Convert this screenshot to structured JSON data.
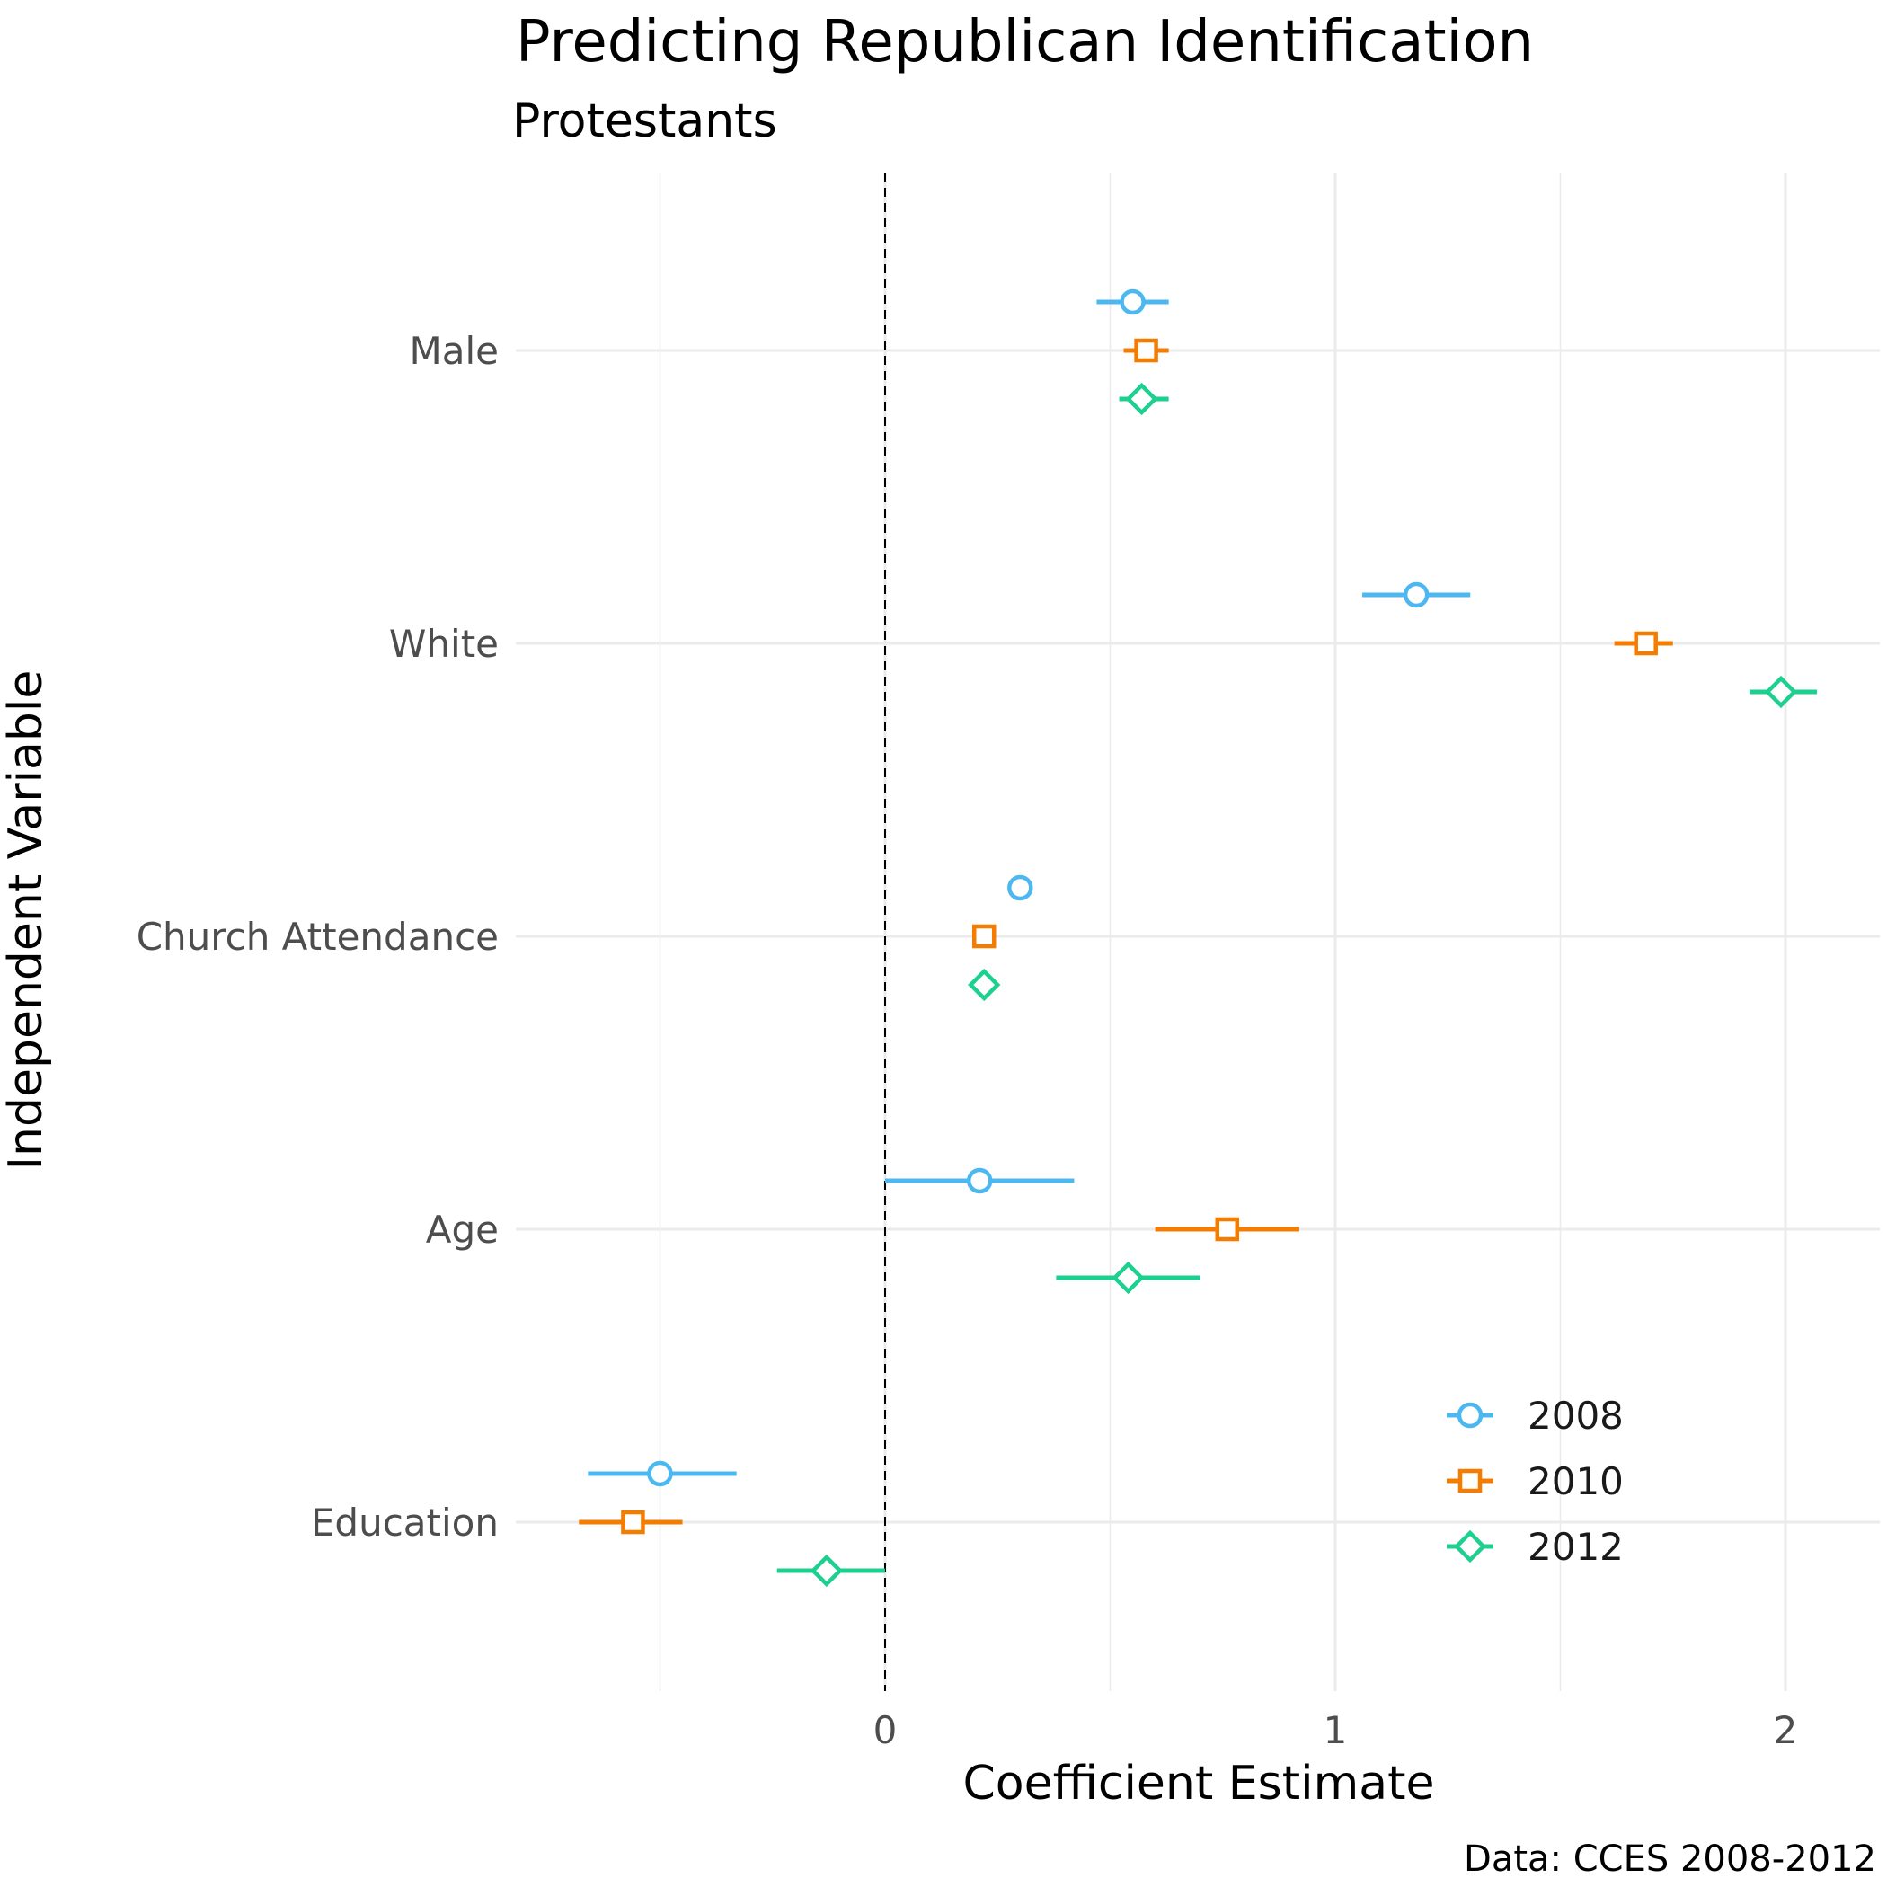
{
  "chart_data": {
    "type": "scatter",
    "subtype": "coefficient-plot-with-error-bars",
    "title": "Predicting Republican Identification",
    "subtitle": "Protestants",
    "xlabel": "Coefficient Estimate",
    "ylabel": "Independent Variable",
    "caption": "Data: CCES 2008-2012",
    "xlim": [
      -0.82,
      2.2
    ],
    "xticks": [
      0,
      1,
      2
    ],
    "reference_line_x": 0,
    "grid": true,
    "legend_position": "bottom-right",
    "categories": [
      "Male",
      "White",
      "Church Attendance",
      "Age",
      "Education"
    ],
    "series": [
      {
        "name": "2008",
        "color": "#4db8f0",
        "shape": "circle",
        "estimate": [
          0.55,
          1.18,
          0.3,
          0.21,
          -0.5
        ],
        "lower": [
          0.47,
          1.06,
          0.3,
          0.0,
          -0.66
        ],
        "upper": [
          0.63,
          1.3,
          0.3,
          0.42,
          -0.33
        ]
      },
      {
        "name": "2010",
        "color": "#f47c00",
        "shape": "square",
        "estimate": [
          0.58,
          1.69,
          0.22,
          0.76,
          -0.56
        ],
        "lower": [
          0.53,
          1.62,
          0.22,
          0.6,
          -0.68
        ],
        "upper": [
          0.63,
          1.75,
          0.22,
          0.92,
          -0.45
        ]
      },
      {
        "name": "2012",
        "color": "#1dd090",
        "shape": "diamond",
        "estimate": [
          0.57,
          1.99,
          0.22,
          0.54,
          -0.13
        ],
        "lower": [
          0.52,
          1.92,
          0.22,
          0.38,
          -0.24
        ],
        "upper": [
          0.63,
          2.07,
          0.22,
          0.7,
          0.0
        ]
      }
    ]
  }
}
